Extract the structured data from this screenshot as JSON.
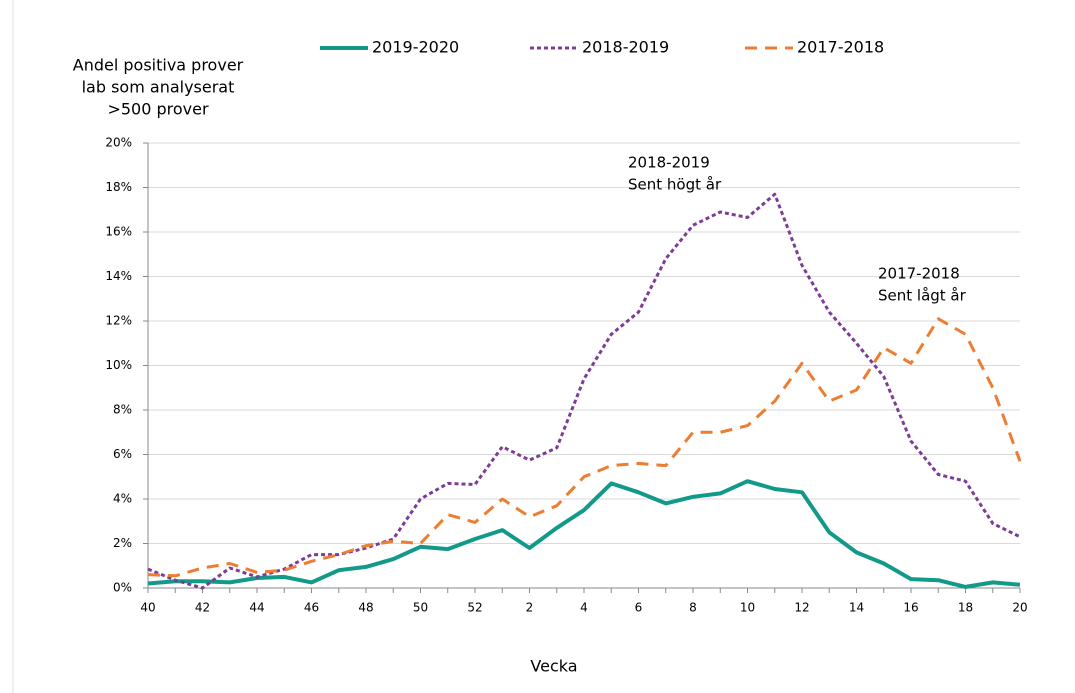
{
  "chart_data": {
    "type": "line",
    "ylabel": [
      "Andel positiva prover",
      "lab som analyserat",
      ">500 prover"
    ],
    "xlabel": "Vecka",
    "categories": [
      "40",
      null,
      "42",
      null,
      "44",
      null,
      "46",
      null,
      "48",
      null,
      "50",
      null,
      "52",
      null,
      "2",
      null,
      "4",
      null,
      "6",
      null,
      "8",
      null,
      "10",
      null,
      "12",
      null,
      "14",
      null,
      "16",
      null,
      "18",
      null,
      "20"
    ],
    "ylim": [
      0,
      20
    ],
    "yticks": [
      {
        "value": 0,
        "label": "0%"
      },
      {
        "value": 2,
        "label": "2%"
      },
      {
        "value": 4,
        "label": "4%"
      },
      {
        "value": 6,
        "label": "6%"
      },
      {
        "value": 8,
        "label": "8%"
      },
      {
        "value": 10,
        "label": "10%"
      },
      {
        "value": 12,
        "label": "12%"
      },
      {
        "value": 14,
        "label": "14%"
      },
      {
        "value": 16,
        "label": "16%"
      },
      {
        "value": 18,
        "label": "18%"
      },
      {
        "value": 20,
        "label": "20%"
      }
    ],
    "grid": true,
    "legend": "top",
    "series": [
      {
        "name": "2019-2020",
        "color": "#13998a",
        "dash": "solid",
        "values": [
          0.2,
          0.3,
          0.3,
          0.25,
          0.45,
          0.5,
          0.25,
          0.8,
          0.95,
          1.3,
          1.85,
          1.75,
          2.2,
          2.6,
          1.8,
          2.7,
          3.5,
          4.7,
          4.3,
          3.8,
          4.1,
          4.25,
          4.8,
          4.45,
          4.3,
          2.5,
          1.6,
          1.1,
          0.4,
          0.35,
          0.05,
          0.25,
          0.15
        ]
      },
      {
        "name": "2018-2019",
        "color": "#7d3c98",
        "dash": "dotted",
        "values": [
          0.85,
          0.35,
          0.0,
          0.9,
          0.5,
          0.85,
          1.5,
          1.5,
          1.8,
          2.2,
          4.0,
          4.7,
          4.65,
          6.35,
          5.75,
          6.3,
          9.4,
          11.4,
          12.4,
          14.8,
          16.3,
          16.9,
          16.65,
          17.7,
          14.5,
          12.4,
          11.0,
          9.5,
          6.6,
          5.1,
          4.8,
          2.9,
          2.3
        ]
      },
      {
        "name": "2017-2018",
        "color": "#ed7d31",
        "dash": "dashed",
        "values": [
          0.6,
          0.55,
          0.9,
          1.1,
          0.7,
          0.8,
          1.2,
          1.5,
          1.9,
          2.1,
          2.0,
          3.3,
          2.95,
          4.0,
          3.2,
          3.7,
          5.0,
          5.5,
          5.6,
          5.5,
          7.0,
          7.0,
          7.3,
          8.4,
          10.1,
          8.4,
          8.9,
          10.8,
          10.1,
          12.1,
          11.4,
          9.0,
          5.7
        ]
      }
    ],
    "annotations": [
      {
        "text": [
          "2018-2019",
          "Sent högt år"
        ],
        "color": "#7d3c98"
      },
      {
        "text": [
          "2017-2018",
          "Sent lågt år"
        ],
        "color": "#ed7d31"
      }
    ]
  }
}
